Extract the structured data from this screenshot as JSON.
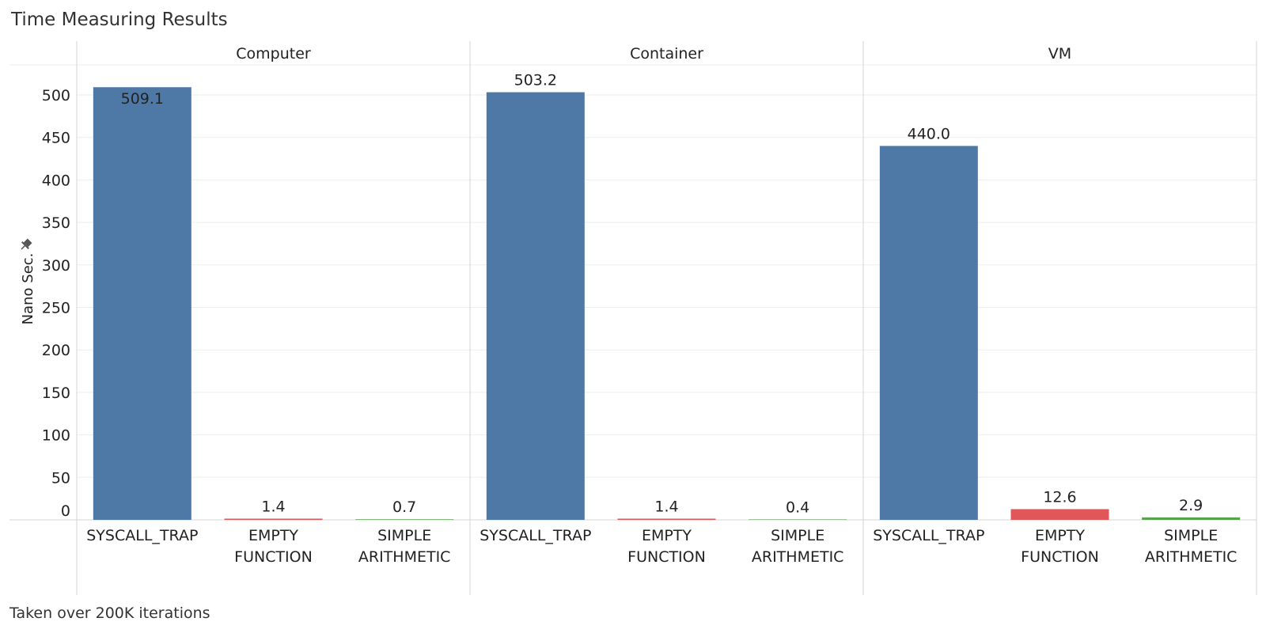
{
  "title": "Time Measuring Results",
  "footnote": "Taken over 200K iterations",
  "y_axis_title": "Nano Sec.",
  "y_axis_icon": "pin-icon",
  "colors": {
    "SYSCALL_TRAP": "#4e79a7",
    "EMPTY FUNCTION": "#e15759",
    "SIMPLE ARITHMETIC": "#59a14f",
    "grid": "#eeeeee",
    "divider": "#d4d4d4"
  },
  "chart_data": {
    "type": "bar",
    "title": "Time Measuring Results",
    "ylabel": "Nano Sec.",
    "ylim": [
      0,
      540
    ],
    "yticks": [
      0,
      50,
      100,
      150,
      200,
      250,
      300,
      350,
      400,
      450,
      500
    ],
    "grid": true,
    "legend": "none",
    "panels": [
      "Computer",
      "Container",
      "VM"
    ],
    "categories": [
      "SYSCALL_TRAP",
      "EMPTY FUNCTION",
      "SIMPLE ARITHMETIC"
    ],
    "category_tick_labels": [
      [
        "SYSCALL_TRAP"
      ],
      [
        "EMPTY",
        "FUNCTION"
      ],
      [
        "SIMPLE",
        "ARITHMETIC"
      ]
    ],
    "series": [
      {
        "panel": "Computer",
        "values": [
          509.1,
          1.4,
          0.7
        ],
        "labels": [
          "509.1",
          "1.4",
          "0.7"
        ]
      },
      {
        "panel": "Container",
        "values": [
          503.2,
          1.4,
          0.4
        ],
        "labels": [
          "503.2",
          "1.4",
          "0.4"
        ]
      },
      {
        "panel": "VM",
        "values": [
          440.0,
          12.6,
          2.9
        ],
        "labels": [
          "440.0",
          "12.6",
          "2.9"
        ]
      }
    ]
  }
}
